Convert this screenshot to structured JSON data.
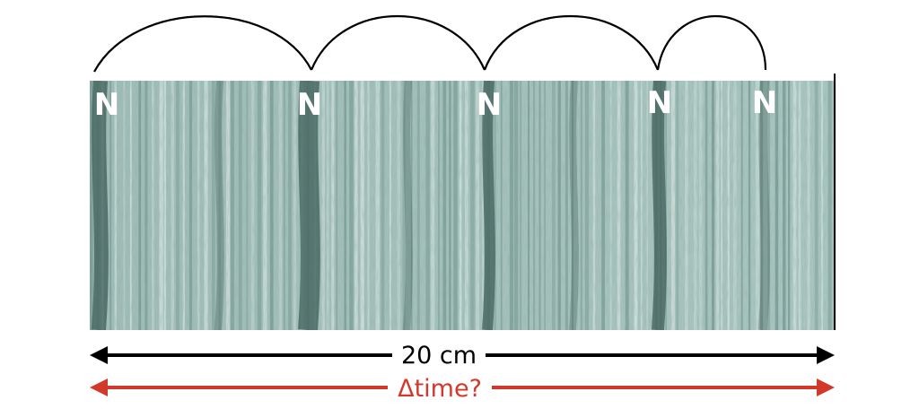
{
  "markers": [
    "N",
    "N",
    "N",
    "N",
    "N"
  ],
  "measure": {
    "label": "20 cm",
    "color": "#000000"
  },
  "unknown": {
    "label": "Δtime?",
    "color": "#d13a2a"
  },
  "colors": {
    "rock_light": "#b9d0cb",
    "rock_mid": "#7d9f98",
    "rock_dark": "#3f5e58",
    "arc": "#000000"
  }
}
